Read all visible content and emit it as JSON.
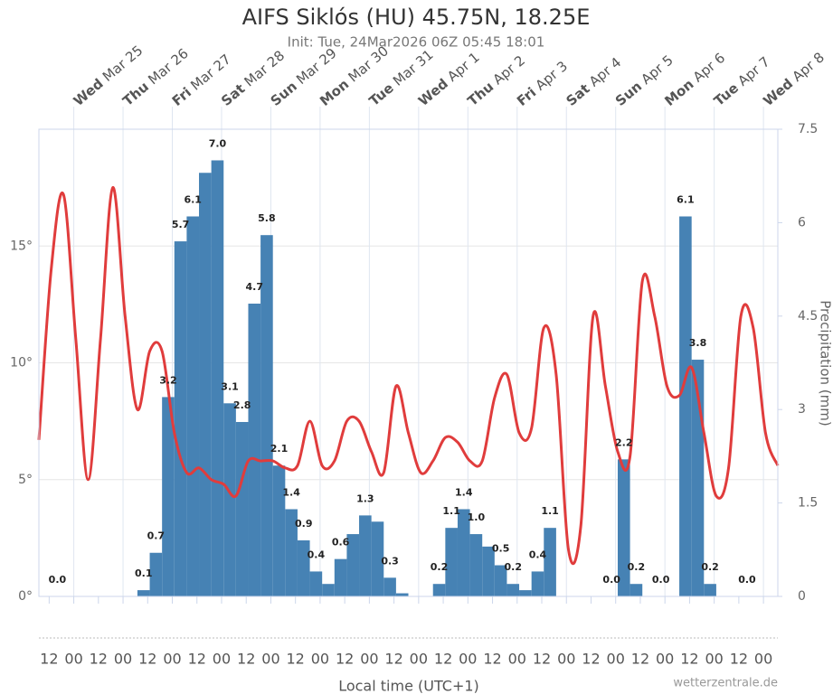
{
  "chart_data": {
    "type": "combo",
    "title": "AIFS Siklós (HU) 45.75N, 18.25E",
    "subtitle": "Init: Tue, 24Mar2026 06Z 05:45 18:01",
    "x_label": "Local time (UTC+1)",
    "y2_label": "Precipitation (mm)",
    "credit": "wetterzentrale.de",
    "xlim": [
      0,
      360
    ],
    "ylim": [
      0,
      20
    ],
    "yticks": [
      {
        "value": 0,
        "label": "0°"
      },
      {
        "value": 5,
        "label": "5°"
      },
      {
        "value": 10,
        "label": "10°"
      },
      {
        "value": 15,
        "label": "15°"
      }
    ],
    "y2lim": [
      0,
      7.5
    ],
    "y2ticks": [
      0,
      1.5,
      3,
      4.5,
      6,
      7.5
    ],
    "grid": true,
    "xticks": [
      {
        "value": 5,
        "label": "12"
      },
      {
        "value": 17,
        "label": "00"
      },
      {
        "value": 29,
        "label": "12"
      },
      {
        "value": 41,
        "label": "00"
      },
      {
        "value": 53,
        "label": "12"
      },
      {
        "value": 65,
        "label": "00"
      },
      {
        "value": 77,
        "label": "12"
      },
      {
        "value": 89,
        "label": "00"
      },
      {
        "value": 101,
        "label": "12"
      },
      {
        "value": 113,
        "label": "00"
      },
      {
        "value": 125,
        "label": "12"
      },
      {
        "value": 137,
        "label": "00"
      },
      {
        "value": 149,
        "label": "12"
      },
      {
        "value": 161,
        "label": "00"
      },
      {
        "value": 173,
        "label": "12"
      },
      {
        "value": 185,
        "label": "00"
      },
      {
        "value": 197,
        "label": "12"
      },
      {
        "value": 209,
        "label": "00"
      },
      {
        "value": 221,
        "label": "12"
      },
      {
        "value": 233,
        "label": "00"
      },
      {
        "value": 245,
        "label": "12"
      },
      {
        "value": 257,
        "label": "00"
      },
      {
        "value": 269,
        "label": "12"
      },
      {
        "value": 281,
        "label": "00"
      },
      {
        "value": 293,
        "label": "12"
      },
      {
        "value": 305,
        "label": "00"
      },
      {
        "value": 317,
        "label": "12"
      },
      {
        "value": 329,
        "label": "00"
      },
      {
        "value": 341,
        "label": "12"
      },
      {
        "value": 353,
        "label": "00"
      }
    ],
    "day_ticks": [
      {
        "value": 17,
        "weekday": "Wed",
        "date": "Mar 25"
      },
      {
        "value": 41,
        "weekday": "Thu",
        "date": "Mar 26"
      },
      {
        "value": 65,
        "weekday": "Fri",
        "date": "Mar 27"
      },
      {
        "value": 89,
        "weekday": "Sat",
        "date": "Mar 28"
      },
      {
        "value": 113,
        "weekday": "Sun",
        "date": "Mar 29"
      },
      {
        "value": 137,
        "weekday": "Mon",
        "date": "Mar 30"
      },
      {
        "value": 161,
        "weekday": "Tue",
        "date": "Mar 31"
      },
      {
        "value": 185,
        "weekday": "Wed",
        "date": "Apr 1"
      },
      {
        "value": 209,
        "weekday": "Thu",
        "date": "Apr 2"
      },
      {
        "value": 233,
        "weekday": "Fri",
        "date": "Apr 3"
      },
      {
        "value": 257,
        "weekday": "Sat",
        "date": "Apr 4"
      },
      {
        "value": 281,
        "weekday": "Sun",
        "date": "Apr 5"
      },
      {
        "value": 305,
        "weekday": "Mon",
        "date": "Apr 6"
      },
      {
        "value": 329,
        "weekday": "Tue",
        "date": "Apr 7"
      },
      {
        "value": 353,
        "weekday": "Wed",
        "date": "Apr 8"
      }
    ],
    "series": [
      {
        "type": "bar",
        "axis": "y2",
        "color": "#4682b4",
        "x": [
          3,
          9,
          15,
          21,
          27,
          33,
          39,
          45,
          51,
          57,
          63,
          69,
          75,
          81,
          87,
          93,
          99,
          105,
          111,
          117,
          123,
          129,
          135,
          141,
          147,
          153,
          159,
          165,
          171,
          177,
          183,
          189,
          195,
          201,
          207,
          213,
          219,
          225,
          231,
          237,
          243,
          249,
          255,
          261,
          267,
          273,
          279,
          285,
          291,
          297,
          303,
          309,
          315,
          321,
          327,
          333,
          339,
          345,
          351,
          357
        ],
        "values": [
          0,
          0,
          0,
          0,
          0,
          0,
          0,
          0,
          0.1,
          0.7,
          3.2,
          5.7,
          6.1,
          6.8,
          7,
          3.1,
          2.8,
          4.7,
          5.8,
          2.1,
          1.4,
          0.9,
          0.4,
          0.2,
          0.6,
          1,
          1.3,
          1.2,
          0.3,
          0.05,
          0,
          0,
          0.2,
          1.1,
          1.4,
          1,
          0.8,
          0.5,
          0.2,
          0.1,
          0.4,
          1.1,
          0,
          0,
          0,
          0,
          0,
          2.2,
          0.2,
          0,
          0,
          0,
          6.1,
          3.8,
          0.2,
          0,
          0,
          0,
          0,
          0
        ],
        "value_labels": [
          null,
          "0.0",
          null,
          null,
          null,
          null,
          null,
          null,
          "0.1",
          "0.7",
          "3.2",
          "5.7",
          "6.1",
          null,
          "7.0",
          "3.1",
          "2.8",
          "4.7",
          "5.8",
          "2.1",
          "1.4",
          "0.9",
          "0.4",
          null,
          "0.6",
          null,
          "1.3",
          null,
          "0.3",
          null,
          null,
          null,
          "0.2",
          "1.1",
          "1.4",
          "1.0",
          null,
          "0.5",
          "0.2",
          null,
          "0.4",
          "1.1",
          null,
          null,
          null,
          null,
          "0.0",
          "2.2",
          "0.2",
          null,
          "0.0",
          null,
          "6.1",
          "3.8",
          "0.2",
          null,
          null,
          "0.0",
          null,
          null
        ]
      },
      {
        "type": "line",
        "color": "#e03c3c",
        "x": [
          0,
          6,
          12,
          18,
          24,
          30,
          36,
          42,
          48,
          54,
          60,
          66,
          72,
          78,
          84,
          90,
          96,
          102,
          108,
          114,
          120,
          126,
          132,
          138,
          144,
          150,
          156,
          162,
          168,
          174,
          180,
          186,
          192,
          198,
          204,
          210,
          216,
          222,
          228,
          234,
          240,
          246,
          252,
          258,
          264,
          270,
          276,
          282,
          288,
          294,
          300,
          306,
          312,
          318,
          324,
          330,
          336,
          342,
          348,
          354,
          360
        ],
        "values": [
          6.7,
          14,
          17.2,
          11,
          5,
          11,
          17.5,
          12,
          8,
          10.5,
          10.5,
          7,
          5.3,
          5.5,
          5,
          4.8,
          4.3,
          5.8,
          5.8,
          5.8,
          5.5,
          5.6,
          7.5,
          5.6,
          5.8,
          7.5,
          7.5,
          6.2,
          5.3,
          9,
          7,
          5.3,
          5.8,
          6.8,
          6.6,
          5.8,
          5.8,
          8.5,
          9.5,
          7,
          7.2,
          11.5,
          9.5,
          2,
          3,
          12,
          9,
          6.2,
          6,
          13.5,
          12,
          9,
          8.6,
          9.8,
          7,
          4.3,
          5.5,
          12,
          11.5,
          7,
          5.6
        ]
      }
    ]
  }
}
